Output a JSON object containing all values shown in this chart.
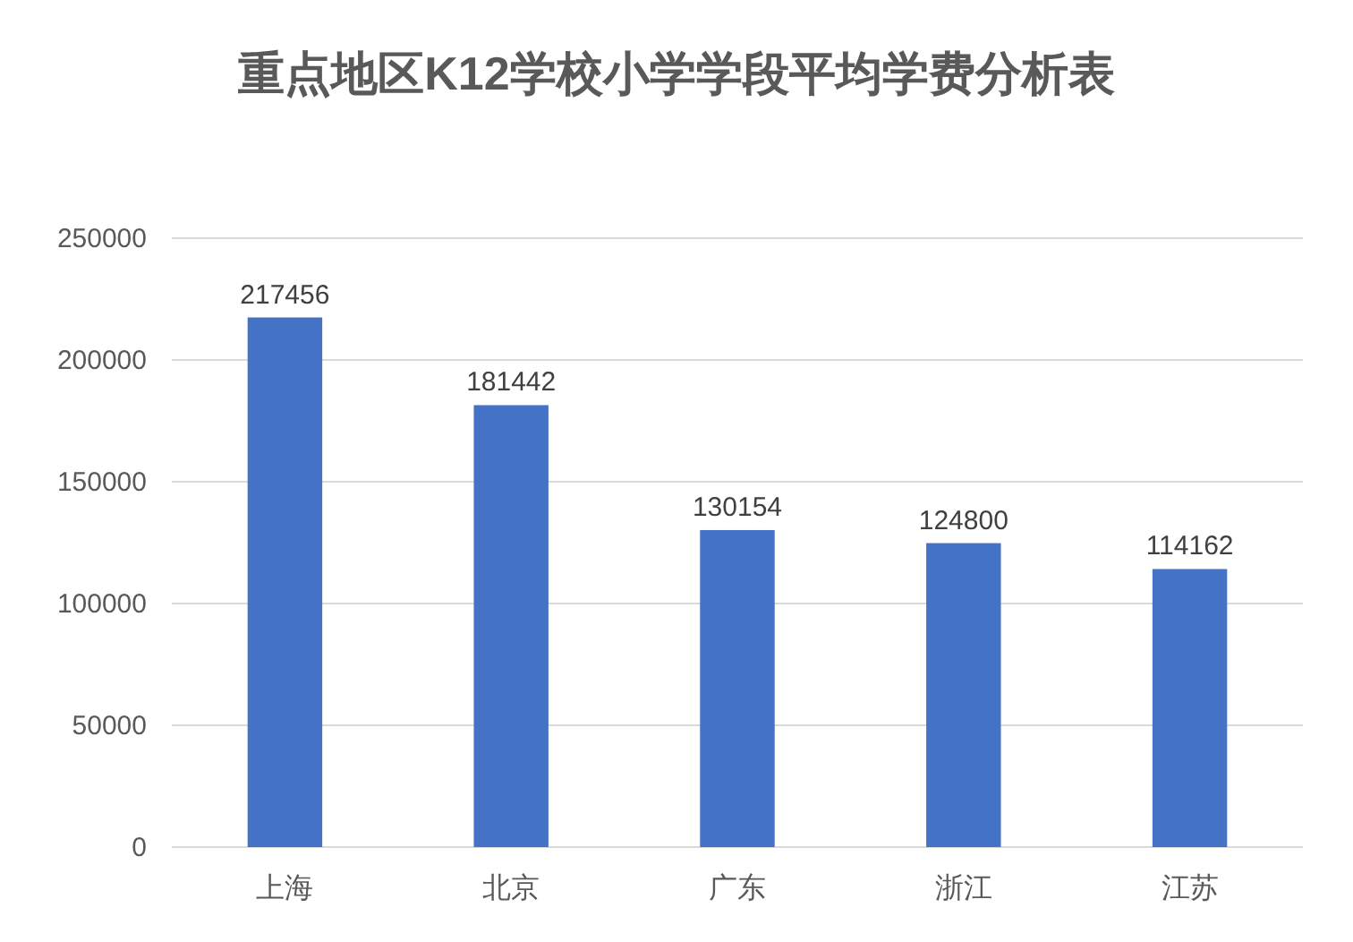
{
  "chart_data": {
    "type": "bar",
    "title": "重点地区K12学校小学学段平均学费分析表",
    "categories": [
      "上海",
      "北京",
      "广东",
      "浙江",
      "江苏"
    ],
    "values": [
      217456,
      181442,
      130154,
      124800,
      114162
    ],
    "color": "#4472c4",
    "ylim": [
      0,
      250000
    ],
    "yticks": [
      0,
      50000,
      100000,
      150000,
      200000,
      250000
    ],
    "grid": "y",
    "data_labels": true
  }
}
